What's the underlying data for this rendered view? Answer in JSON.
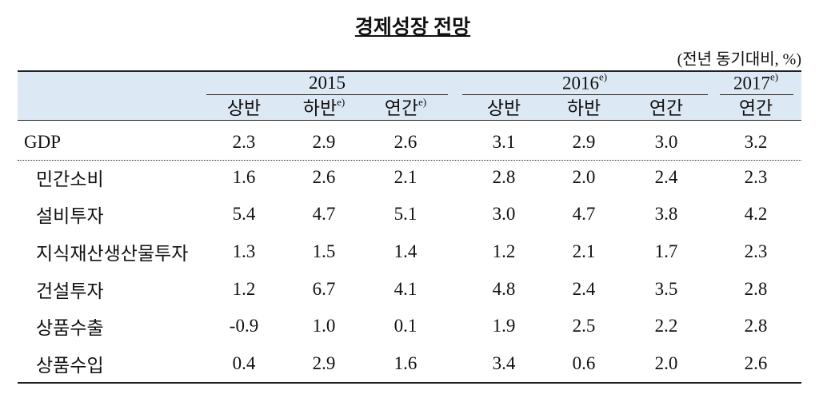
{
  "title": "경제성장 전망",
  "unit_note": "(전년 동기대비, %)",
  "table": {
    "groups": [
      {
        "text": "2015"
      },
      {
        "text": "2016",
        "sup": "e)"
      },
      {
        "text": "2017",
        "sup": "e)"
      }
    ],
    "subheaders": [
      {
        "text": "상반"
      },
      {
        "text": "하반",
        "sup": "e)"
      },
      {
        "text": "연간",
        "sup": "e)"
      },
      {
        "text": "상반"
      },
      {
        "text": "하반"
      },
      {
        "text": "연간"
      },
      {
        "text": "연간"
      }
    ],
    "rows": [
      [
        "GDP",
        "2.3",
        "2.9",
        "2.6",
        "3.1",
        "2.9",
        "3.0",
        "3.2"
      ],
      [
        "민간소비",
        "1.6",
        "2.6",
        "2.1",
        "2.8",
        "2.0",
        "2.4",
        "2.3"
      ],
      [
        "설비투자",
        "5.4",
        "4.7",
        "5.1",
        "3.0",
        "4.7",
        "3.8",
        "4.2"
      ],
      [
        "지식재산생산물투자",
        "1.3",
        "1.5",
        "1.4",
        "1.2",
        "2.1",
        "1.7",
        "2.3"
      ],
      [
        "건설투자",
        "1.2",
        "6.7",
        "4.1",
        "4.8",
        "2.4",
        "3.5",
        "2.8"
      ],
      [
        "상품수출",
        "-0.9",
        "1.0",
        "0.1",
        "1.9",
        "2.5",
        "2.2",
        "2.8"
      ],
      [
        "상품수입",
        "0.4",
        "2.9",
        "1.6",
        "3.4",
        "0.6",
        "2.0",
        "2.6"
      ]
    ]
  }
}
